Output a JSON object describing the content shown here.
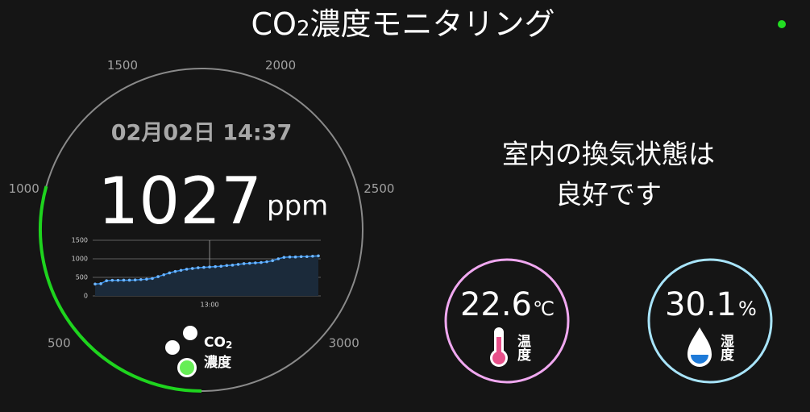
{
  "header": {
    "title_main": "CO",
    "title_subscript": "2",
    "title_rest": "濃度モニタリング"
  },
  "gauge": {
    "value": 1027,
    "unit": "ppm",
    "datetime": "02月02日 14:37",
    "range": [
      0,
      3500
    ],
    "ticks": [
      500,
      1000,
      1500,
      2000,
      2500,
      3000
    ],
    "color": "#1ed41e"
  },
  "chart_data": {
    "type": "line",
    "categories": [
      null,
      null,
      null,
      null,
      null,
      null,
      null,
      null,
      null,
      null,
      null,
      null,
      null,
      null,
      null,
      null,
      null,
      null,
      null,
      null,
      "13:00",
      null,
      null,
      null,
      null,
      null,
      null,
      null,
      null,
      null,
      null,
      null,
      null,
      null,
      null,
      null,
      null,
      null,
      null,
      null
    ],
    "values": [
      320,
      330,
      410,
      420,
      420,
      425,
      425,
      430,
      440,
      450,
      470,
      520,
      570,
      620,
      660,
      690,
      720,
      740,
      760,
      770,
      780,
      790,
      800,
      820,
      830,
      850,
      870,
      880,
      890,
      900,
      920,
      950,
      1000,
      1040,
      1050,
      1050,
      1060,
      1060,
      1070,
      1080
    ],
    "ylim": [
      0,
      1500
    ],
    "yticks": [
      0,
      500,
      1000,
      1500
    ],
    "color": "#2f8ff0",
    "grid": true
  },
  "legend": {
    "label_main": "CO",
    "label_subscript": "2",
    "label_rest": "濃度"
  },
  "status": {
    "lines": [
      "室内の換気状態は",
      "良好です"
    ]
  },
  "temperature": {
    "value": 22.6,
    "unit": "℃",
    "label": "温度"
  },
  "humidity": {
    "value": 30.1,
    "unit": "%",
    "label": "湿度"
  }
}
